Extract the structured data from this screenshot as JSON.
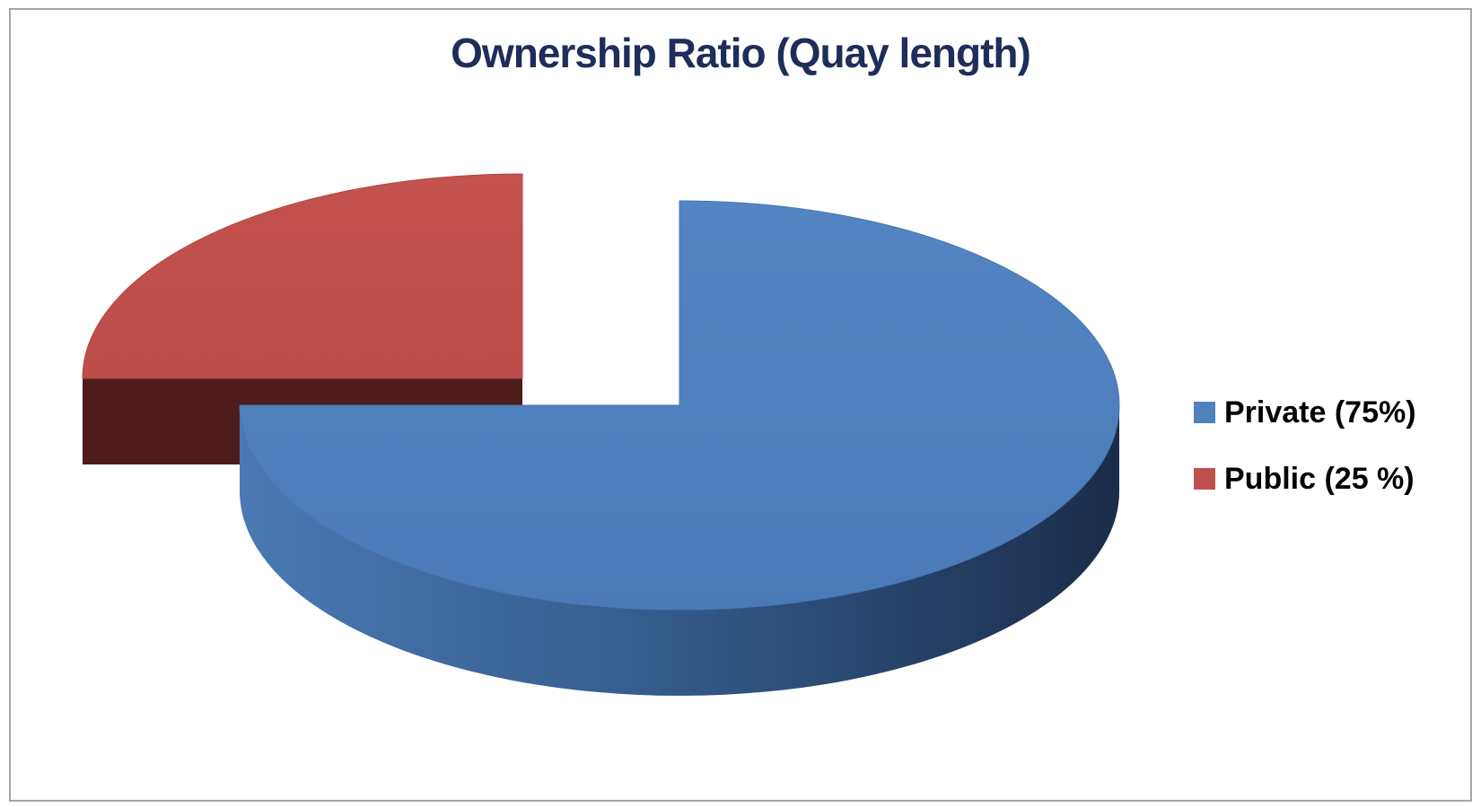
{
  "chart_data": {
    "type": "pie",
    "title": "Ownership  Ratio (Quay length)",
    "slices": [
      {
        "label": "Private (75%)",
        "value": 75,
        "color": "#4f81bd",
        "exploded": false
      },
      {
        "label": "Public (25 %)",
        "value": 25,
        "color": "#c0504d",
        "exploded": true
      }
    ],
    "style": "3d-exploded",
    "legend_position": "right"
  }
}
